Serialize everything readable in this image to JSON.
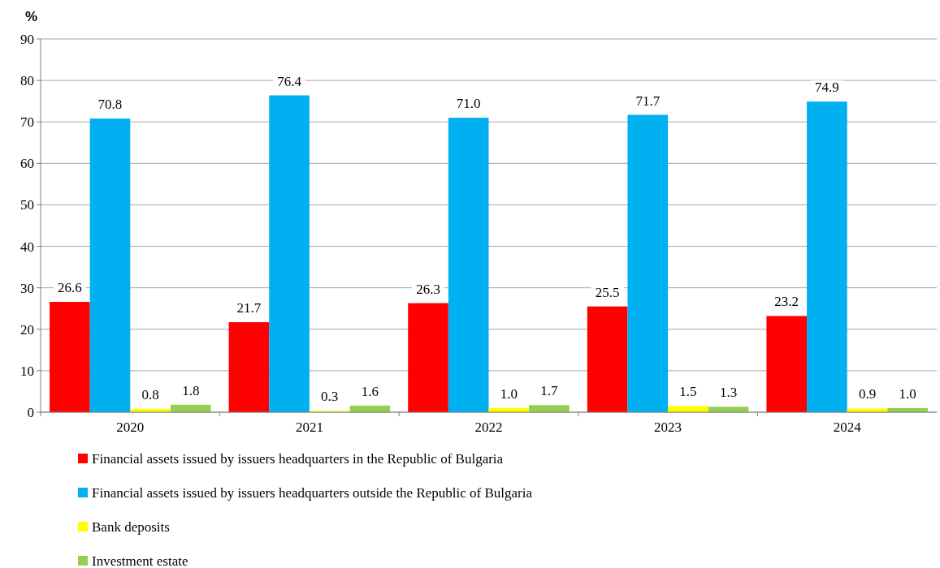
{
  "chart_data": {
    "type": "bar",
    "ylabel": "%",
    "categories": [
      "2020",
      "2021",
      "2022",
      "2023",
      "2024"
    ],
    "series": [
      {
        "name": "Financial assets issued by issuers headquarters in the Republic of Bulgaria",
        "color": "#ff0000",
        "values": [
          26.6,
          21.7,
          26.3,
          25.5,
          23.2
        ]
      },
      {
        "name": "Financial assets issued by issuers headquarters outside the Republic of Bulgaria",
        "color": "#00b0f0",
        "values": [
          70.8,
          76.4,
          71.0,
          71.7,
          74.9
        ]
      },
      {
        "name": "Bank deposits",
        "color": "#ffff00",
        "values": [
          0.8,
          0.3,
          1.0,
          1.5,
          0.9
        ]
      },
      {
        "name": "Investment estate",
        "color": "#92d050",
        "values": [
          1.8,
          1.6,
          1.7,
          1.3,
          1.0
        ]
      }
    ],
    "value_labels": [
      [
        "26.6",
        "21.7",
        "26.3",
        "25.5",
        "23.2"
      ],
      [
        "70.8",
        "76.4",
        "71.0",
        "71.7",
        "74.9"
      ],
      [
        "0.8",
        "0.3",
        "1.0",
        "1.5",
        "0.9"
      ],
      [
        "1.8",
        "1.6",
        "1.7",
        "1.3",
        "1.0"
      ]
    ],
    "ylim": [
      0,
      90
    ],
    "yticks": [
      0,
      10,
      20,
      30,
      40,
      50,
      60,
      70,
      80,
      90
    ],
    "grid": "y",
    "legend": "bottom"
  }
}
